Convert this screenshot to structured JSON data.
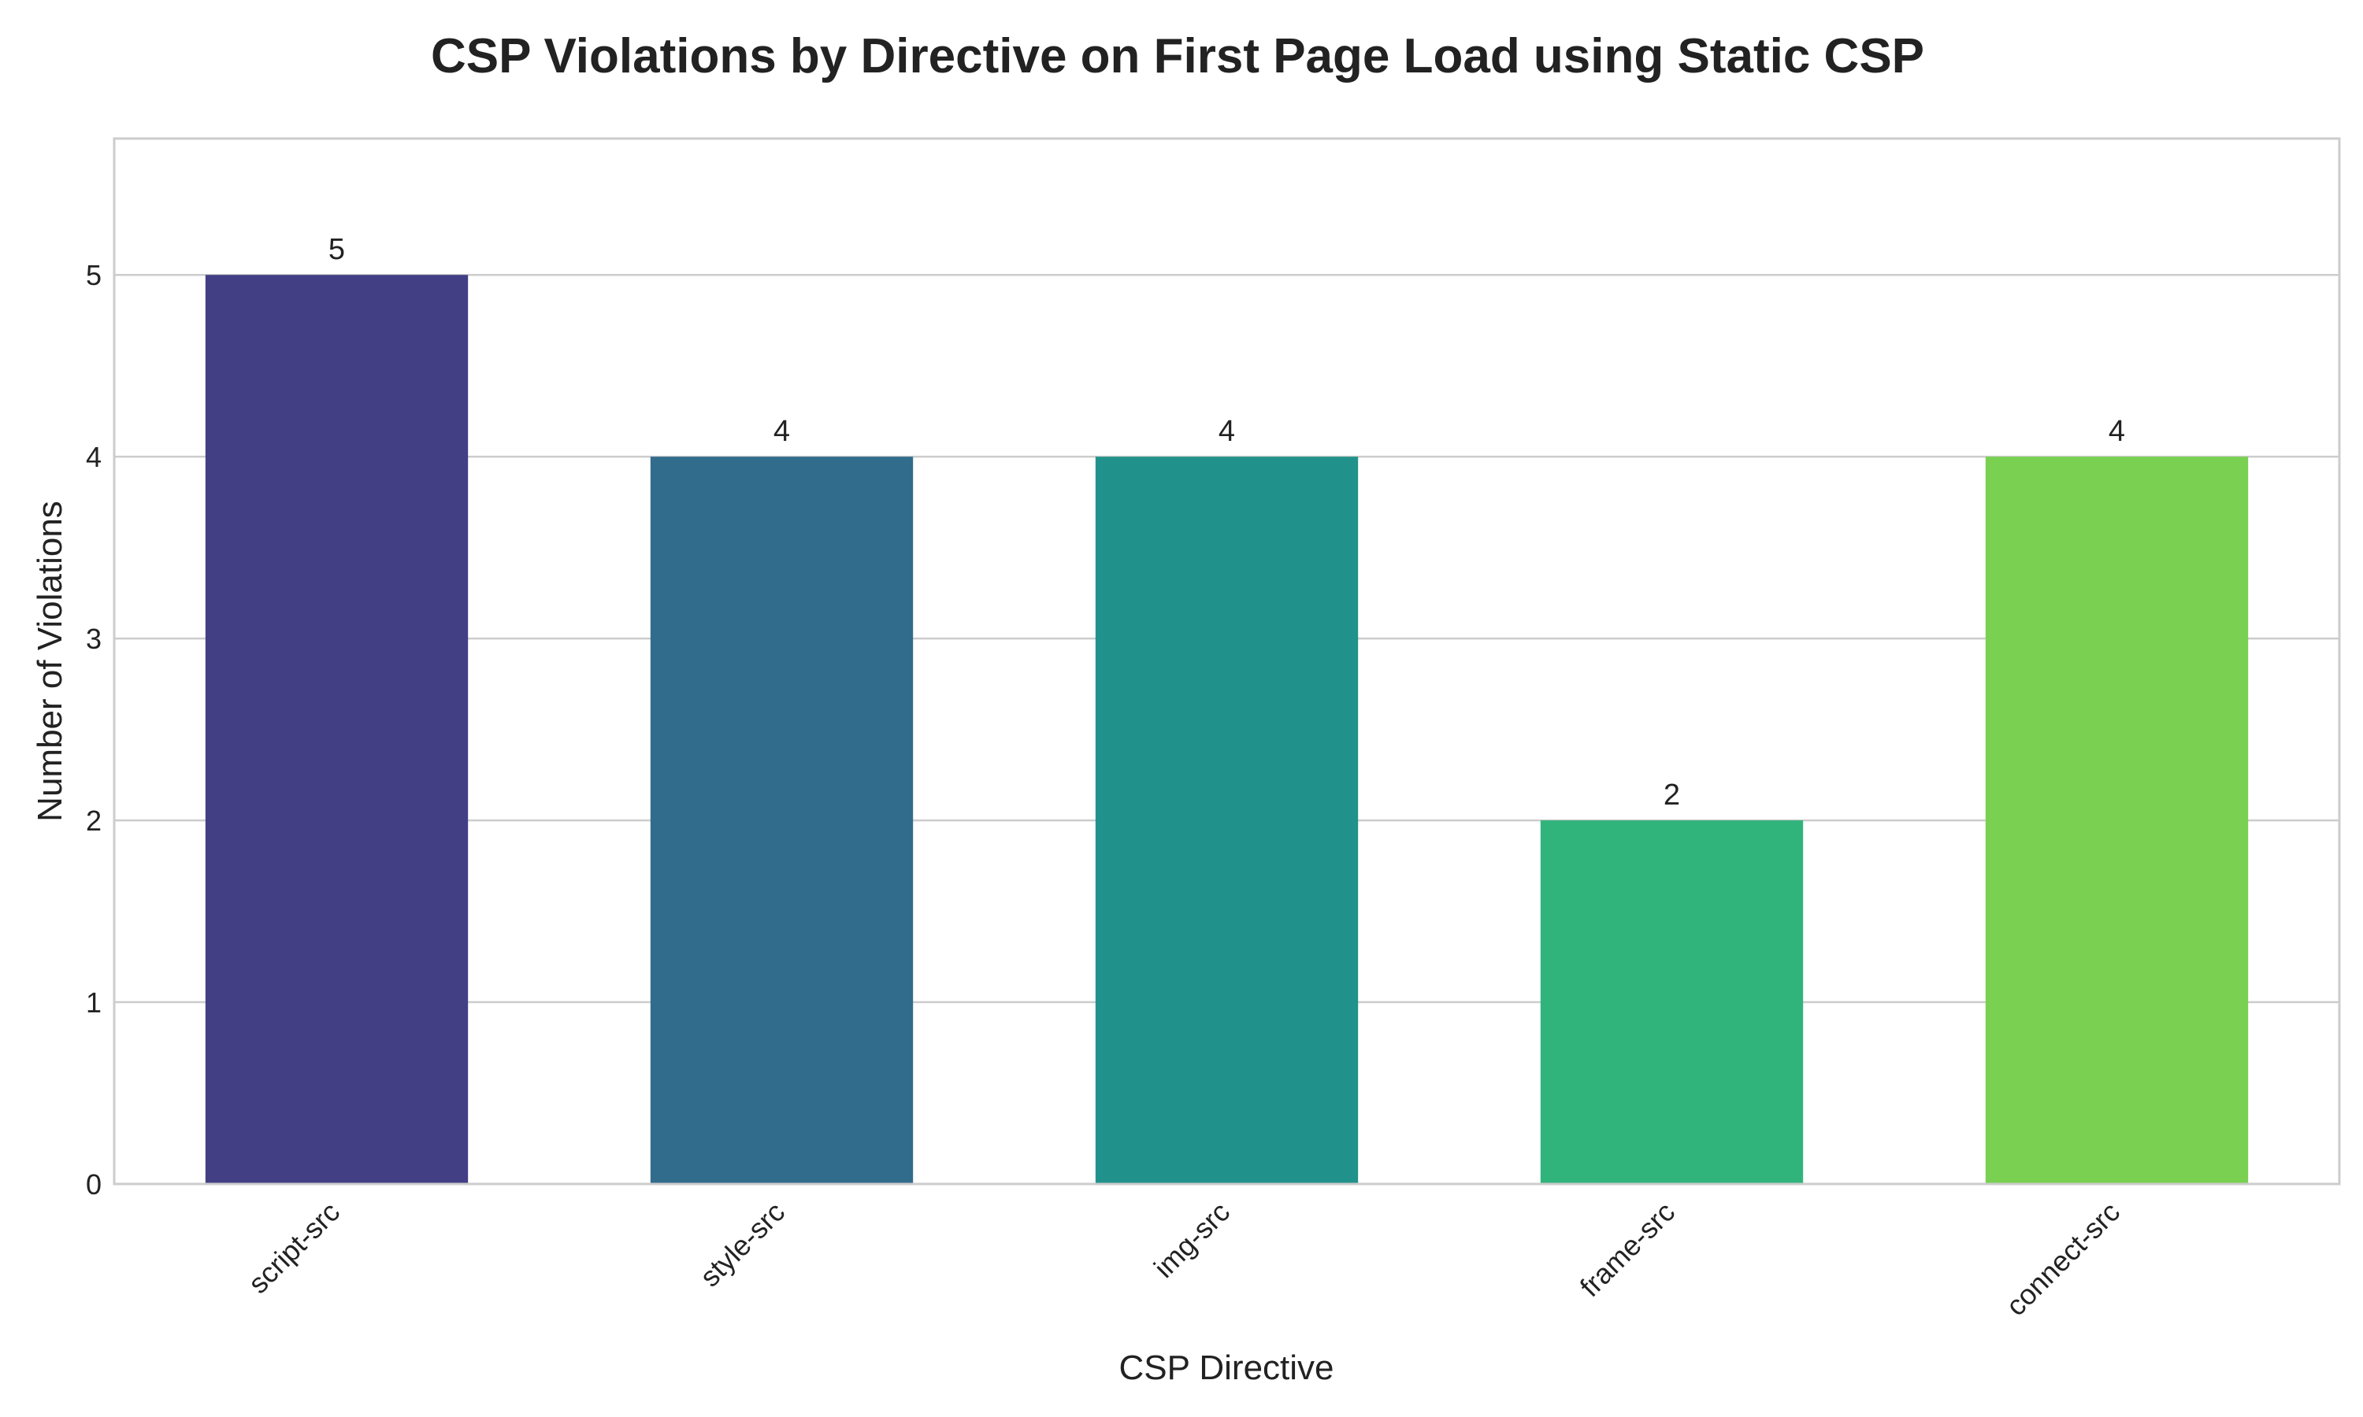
{
  "chart_data": {
    "type": "bar",
    "title": "CSP Violations by Directive on First Page Load using Static CSP",
    "xlabel": "CSP Directive",
    "ylabel": "Number of Violations",
    "categories": [
      "script-src",
      "style-src",
      "img-src",
      "frame-src",
      "connect-src"
    ],
    "values": [
      5,
      4,
      4,
      2,
      4
    ],
    "colors": [
      "#433f85",
      "#326c8c",
      "#21928b",
      "#31b47c",
      "#79d051"
    ],
    "ylim": [
      0,
      5.75
    ],
    "yticks": [
      0,
      1,
      2,
      3,
      4,
      5
    ],
    "grid": "horizontal",
    "legend": "none"
  }
}
